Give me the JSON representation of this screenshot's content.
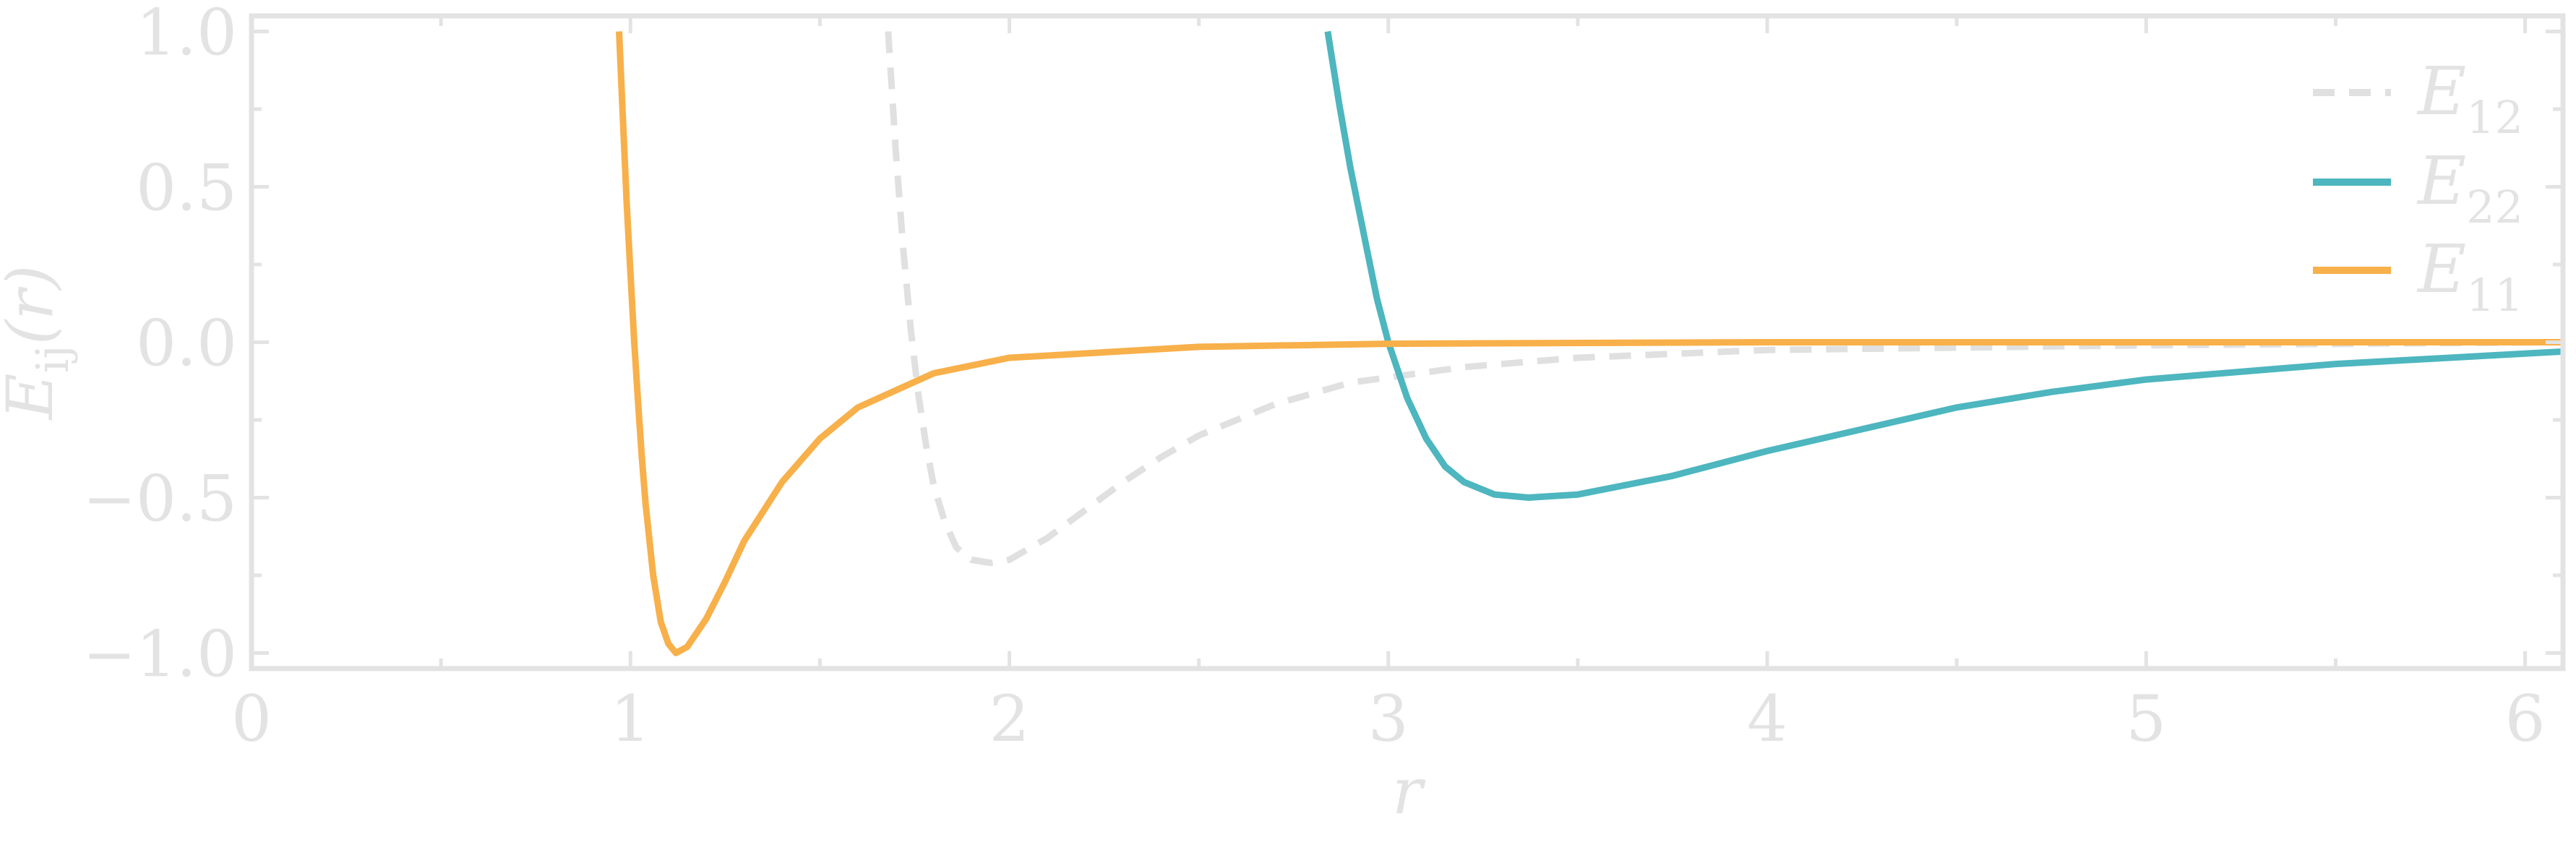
{
  "chart_data": {
    "type": "line",
    "xlabel": "r",
    "ylabel": "E_ij(r)",
    "ylabel_main": "E",
    "ylabel_sub": "ij",
    "ylabel_arg": "(r)",
    "xlim": [
      0,
      6.1
    ],
    "ylim": [
      -1.05,
      1.05
    ],
    "xticks": [
      0,
      1,
      2,
      3,
      4,
      5,
      6
    ],
    "xtick_labels": [
      "0",
      "1",
      "2",
      "3",
      "4",
      "5",
      "6"
    ],
    "yticks": [
      -1.0,
      -0.5,
      0.0,
      0.5,
      1.0
    ],
    "ytick_labels": [
      "−1.0",
      "−0.5",
      "0.0",
      "0.5",
      "1.0"
    ],
    "grid": false,
    "legend_position": "top-right",
    "series": [
      {
        "name": "E_12",
        "label_main": "E",
        "label_sub": "12",
        "style": "dashed",
        "color": "#e0e0e0",
        "points": [
          [
            1.68,
            1.0
          ],
          [
            1.7,
            0.62
          ],
          [
            1.72,
            0.3
          ],
          [
            1.74,
            0.04
          ],
          [
            1.76,
            -0.17
          ],
          [
            1.78,
            -0.33
          ],
          [
            1.8,
            -0.46
          ],
          [
            1.83,
            -0.58
          ],
          [
            1.86,
            -0.66
          ],
          [
            1.9,
            -0.7
          ],
          [
            1.95,
            -0.71
          ],
          [
            2.0,
            -0.7
          ],
          [
            2.1,
            -0.63
          ],
          [
            2.2,
            -0.54
          ],
          [
            2.3,
            -0.45
          ],
          [
            2.4,
            -0.37
          ],
          [
            2.5,
            -0.3
          ],
          [
            2.7,
            -0.2
          ],
          [
            2.9,
            -0.13
          ],
          [
            3.2,
            -0.08
          ],
          [
            3.5,
            -0.05
          ],
          [
            4.0,
            -0.025
          ],
          [
            5.0,
            -0.01
          ],
          [
            6.1,
            0.0
          ]
        ]
      },
      {
        "name": "E_22",
        "label_main": "E",
        "label_sub": "22",
        "style": "solid",
        "color": "#4db6bf",
        "points": [
          [
            2.84,
            1.0
          ],
          [
            2.87,
            0.77
          ],
          [
            2.9,
            0.56
          ],
          [
            2.94,
            0.32
          ],
          [
            2.97,
            0.14
          ],
          [
            3.0,
            0.0
          ],
          [
            3.05,
            -0.18
          ],
          [
            3.1,
            -0.31
          ],
          [
            3.15,
            -0.4
          ],
          [
            3.2,
            -0.45
          ],
          [
            3.28,
            -0.49
          ],
          [
            3.37,
            -0.5
          ],
          [
            3.5,
            -0.49
          ],
          [
            3.75,
            -0.43
          ],
          [
            4.0,
            -0.35
          ],
          [
            4.25,
            -0.28
          ],
          [
            4.5,
            -0.21
          ],
          [
            4.75,
            -0.16
          ],
          [
            5.0,
            -0.12
          ],
          [
            5.5,
            -0.07
          ],
          [
            6.1,
            -0.03
          ]
        ]
      },
      {
        "name": "E_11",
        "label_main": "E",
        "label_sub": "11",
        "style": "solid",
        "color": "#f8b04a",
        "points": [
          [
            0.97,
            1.0
          ],
          [
            0.98,
            0.72
          ],
          [
            0.99,
            0.45
          ],
          [
            1.0,
            0.22
          ],
          [
            1.01,
            0.0
          ],
          [
            1.02,
            -0.19
          ],
          [
            1.03,
            -0.37
          ],
          [
            1.04,
            -0.52
          ],
          [
            1.06,
            -0.75
          ],
          [
            1.08,
            -0.9
          ],
          [
            1.1,
            -0.97
          ],
          [
            1.12,
            -1.0
          ],
          [
            1.15,
            -0.98
          ],
          [
            1.2,
            -0.89
          ],
          [
            1.25,
            -0.77
          ],
          [
            1.3,
            -0.64
          ],
          [
            1.4,
            -0.45
          ],
          [
            1.5,
            -0.31
          ],
          [
            1.6,
            -0.21
          ],
          [
            1.8,
            -0.1
          ],
          [
            2.0,
            -0.05
          ],
          [
            2.5,
            -0.015
          ],
          [
            3.0,
            -0.005
          ],
          [
            4.0,
            0.0
          ],
          [
            6.1,
            0.0
          ]
        ]
      }
    ]
  }
}
